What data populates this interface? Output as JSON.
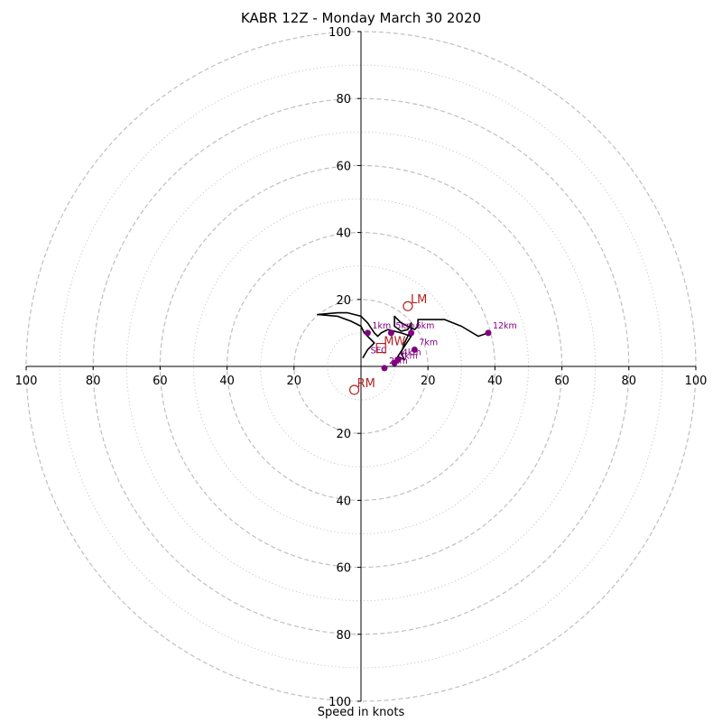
{
  "chart_data": {
    "type": "hodograph",
    "title": "KABR 12Z - Monday March 30 2020",
    "xlabel": "Speed in knots",
    "range": [
      -100,
      100
    ],
    "rings_major": [
      20,
      40,
      60,
      80,
      100
    ],
    "rings_minor": [
      10,
      30,
      50,
      70,
      90
    ],
    "tick_labels": [
      20,
      40,
      60,
      80,
      100
    ],
    "colors": {
      "hodograph": "#000000",
      "markers": "#800080",
      "storm_motion": "#b22222",
      "grid": "#bfbfbf"
    },
    "hodograph_uv": [
      [
        0.5,
        2.5
      ],
      [
        2,
        5
      ],
      [
        4,
        7
      ],
      [
        1,
        10
      ],
      [
        0,
        12
      ],
      [
        -3,
        13.5
      ],
      [
        -7,
        15
      ],
      [
        -13,
        15.5
      ],
      [
        -7,
        16
      ],
      [
        -4,
        16
      ],
      [
        0,
        15
      ],
      [
        2,
        13
      ],
      [
        4,
        10
      ],
      [
        5,
        9
      ],
      [
        6,
        10
      ],
      [
        8,
        11
      ],
      [
        12,
        10
      ],
      [
        15,
        9
      ],
      [
        13,
        6
      ],
      [
        11,
        3
      ],
      [
        13,
        2
      ],
      [
        12,
        4
      ],
      [
        13,
        7
      ],
      [
        15,
        11
      ],
      [
        15,
        13
      ],
      [
        14,
        11
      ],
      [
        12,
        10.5
      ],
      [
        10,
        12
      ],
      [
        10,
        15
      ],
      [
        12,
        13
      ],
      [
        16,
        11
      ],
      [
        17,
        12
      ],
      [
        17,
        14
      ],
      [
        25,
        14
      ],
      [
        30,
        12
      ],
      [
        35,
        9
      ],
      [
        38,
        10
      ]
    ],
    "height_markers": [
      {
        "label": "1km",
        "u": 2,
        "v": 10
      },
      {
        "label": "2km",
        "u": 7,
        "v": -0.5
      },
      {
        "label": "3km",
        "u": 10,
        "v": 1
      },
      {
        "label": "4km",
        "u": 11,
        "v": 2
      },
      {
        "label": "5km",
        "u": 9,
        "v": 10
      },
      {
        "label": "6km",
        "u": 15,
        "v": 10
      },
      {
        "label": "7km",
        "u": 16,
        "v": 5
      },
      {
        "label": "12km",
        "u": 38,
        "v": 10
      },
      {
        "label": "SFC",
        "u": 1.5,
        "v": 2.5
      }
    ],
    "storm_motions": [
      {
        "label": "LM",
        "u": 14,
        "v": 18,
        "marker": "circle"
      },
      {
        "label": "RM",
        "u": -2,
        "v": -7,
        "marker": "circle"
      },
      {
        "label": "MW",
        "u": 6,
        "v": 5.5,
        "marker": "square"
      }
    ]
  }
}
